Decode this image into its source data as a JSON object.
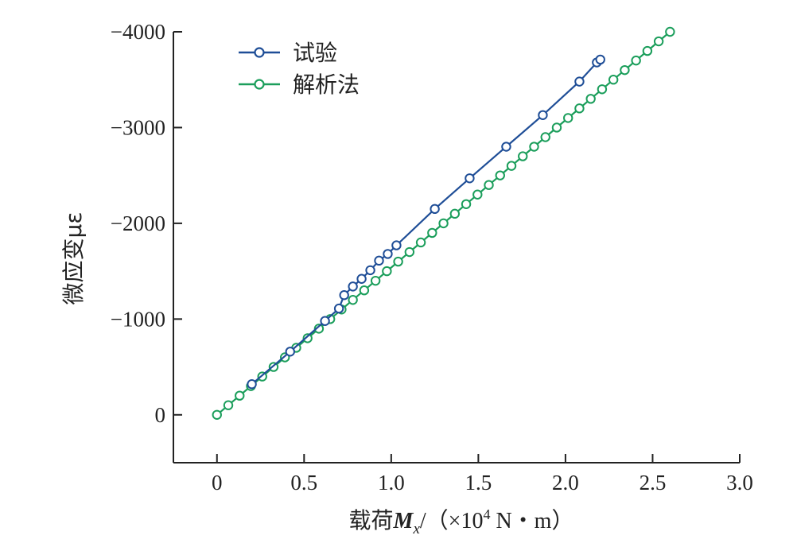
{
  "chart_data": {
    "type": "line",
    "xlabel": {
      "prefix": "载荷",
      "var": "M",
      "sub": "x",
      "suffix": "/（×10",
      "exp": "4",
      "unit": " N・m）"
    },
    "ylabel": "微应变με",
    "xlim": [
      -0.25,
      3.0
    ],
    "ylim": [
      500,
      -4000
    ],
    "x_ticks": [
      0,
      0.5,
      1.0,
      1.5,
      2.0,
      2.5,
      3.0
    ],
    "x_tick_labels": [
      "0",
      "0.5",
      "1.0",
      "1.5",
      "2.0",
      "2.5",
      "3.0"
    ],
    "y_ticks": [
      0,
      -1000,
      -2000,
      -3000,
      -4000
    ],
    "y_tick_labels": [
      "0",
      "−1000",
      "−2000",
      "−3000",
      "−4000"
    ],
    "grid": false,
    "legend_position": "top-left",
    "series": [
      {
        "name": "试验",
        "color": "#1f4e97",
        "marker": "circle-open",
        "x": [
          0.2,
          0.42,
          0.62,
          0.7,
          0.73,
          0.78,
          0.83,
          0.88,
          0.93,
          0.98,
          1.03,
          1.25,
          1.45,
          1.66,
          1.87,
          2.08,
          2.18,
          2.2
        ],
        "y": [
          -320,
          -660,
          -980,
          -1110,
          -1250,
          -1340,
          -1420,
          -1510,
          -1610,
          -1680,
          -1770,
          -2150,
          -2470,
          -2800,
          -3130,
          -3480,
          -3680,
          -3710
        ]
      },
      {
        "name": "解析法",
        "color": "#1b9e5b",
        "marker": "circle-open",
        "x": [
          0,
          0.065,
          0.13,
          0.195,
          0.26,
          0.325,
          0.39,
          0.455,
          0.52,
          0.585,
          0.65,
          0.715,
          0.78,
          0.845,
          0.91,
          0.975,
          1.04,
          1.105,
          1.17,
          1.235,
          1.3,
          1.365,
          1.43,
          1.495,
          1.56,
          1.625,
          1.69,
          1.755,
          1.82,
          1.885,
          1.95,
          2.015,
          2.08,
          2.145,
          2.21,
          2.275,
          2.34,
          2.405,
          2.47,
          2.535,
          2.6
        ],
        "y": [
          0,
          -100,
          -200,
          -300,
          -400,
          -500,
          -600,
          -700,
          -800,
          -900,
          -1000,
          -1100,
          -1200,
          -1300,
          -1400,
          -1500,
          -1600,
          -1700,
          -1800,
          -1900,
          -2000,
          -2100,
          -2200,
          -2300,
          -2400,
          -2500,
          -2600,
          -2700,
          -2800,
          -2900,
          -3000,
          -3100,
          -3200,
          -3300,
          -3400,
          -3500,
          -3600,
          -3700,
          -3800,
          -3900,
          -4000
        ]
      }
    ]
  }
}
